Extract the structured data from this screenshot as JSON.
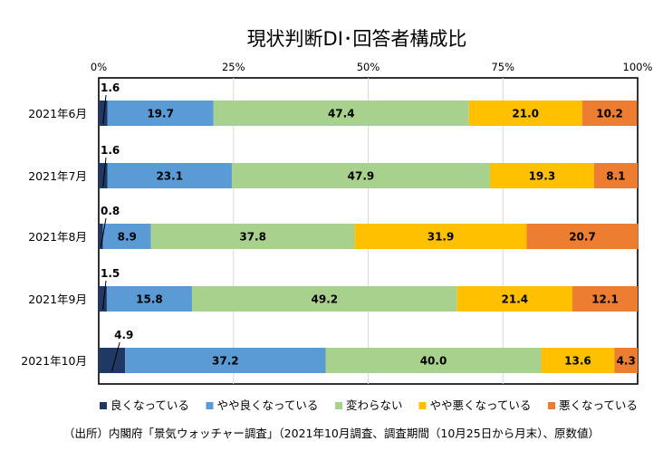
{
  "chart_data": {
    "type": "bar",
    "orientation": "horizontal",
    "stacked": "percent",
    "title": "現状判断DI･回答者構成比",
    "categories": [
      "2021年6月",
      "2021年7月",
      "2021年8月",
      "2021年9月",
      "2021年10月"
    ],
    "xlim": [
      0,
      100
    ],
    "x_ticks": [
      "0%",
      "25%",
      "50%",
      "75%",
      "100%"
    ],
    "x_tick_values": [
      0,
      25,
      50,
      75,
      100
    ],
    "series": [
      {
        "name": "良くなっている",
        "color": "#203864",
        "values": [
          1.6,
          1.6,
          0.8,
          1.5,
          4.9
        ]
      },
      {
        "name": "やや良くなっている",
        "color": "#5b9bd5",
        "values": [
          19.7,
          23.1,
          8.9,
          15.8,
          37.2
        ]
      },
      {
        "name": "変わらない",
        "color": "#a9d18e",
        "values": [
          47.4,
          47.9,
          37.8,
          49.2,
          40.0
        ]
      },
      {
        "name": "やや悪くなっている",
        "color": "#ffc000",
        "values": [
          21.0,
          19.3,
          31.9,
          21.4,
          13.6
        ]
      },
      {
        "name": "悪くなっている",
        "color": "#ed7d31",
        "values": [
          10.2,
          8.1,
          20.7,
          12.1,
          4.3
        ]
      }
    ],
    "legend_position": "bottom",
    "grid": true
  },
  "source_note": "（出所）内閣府「景気ウォッチャー調査」（2021年10月調査、調査期間（10月25日から月末）、原数値）"
}
